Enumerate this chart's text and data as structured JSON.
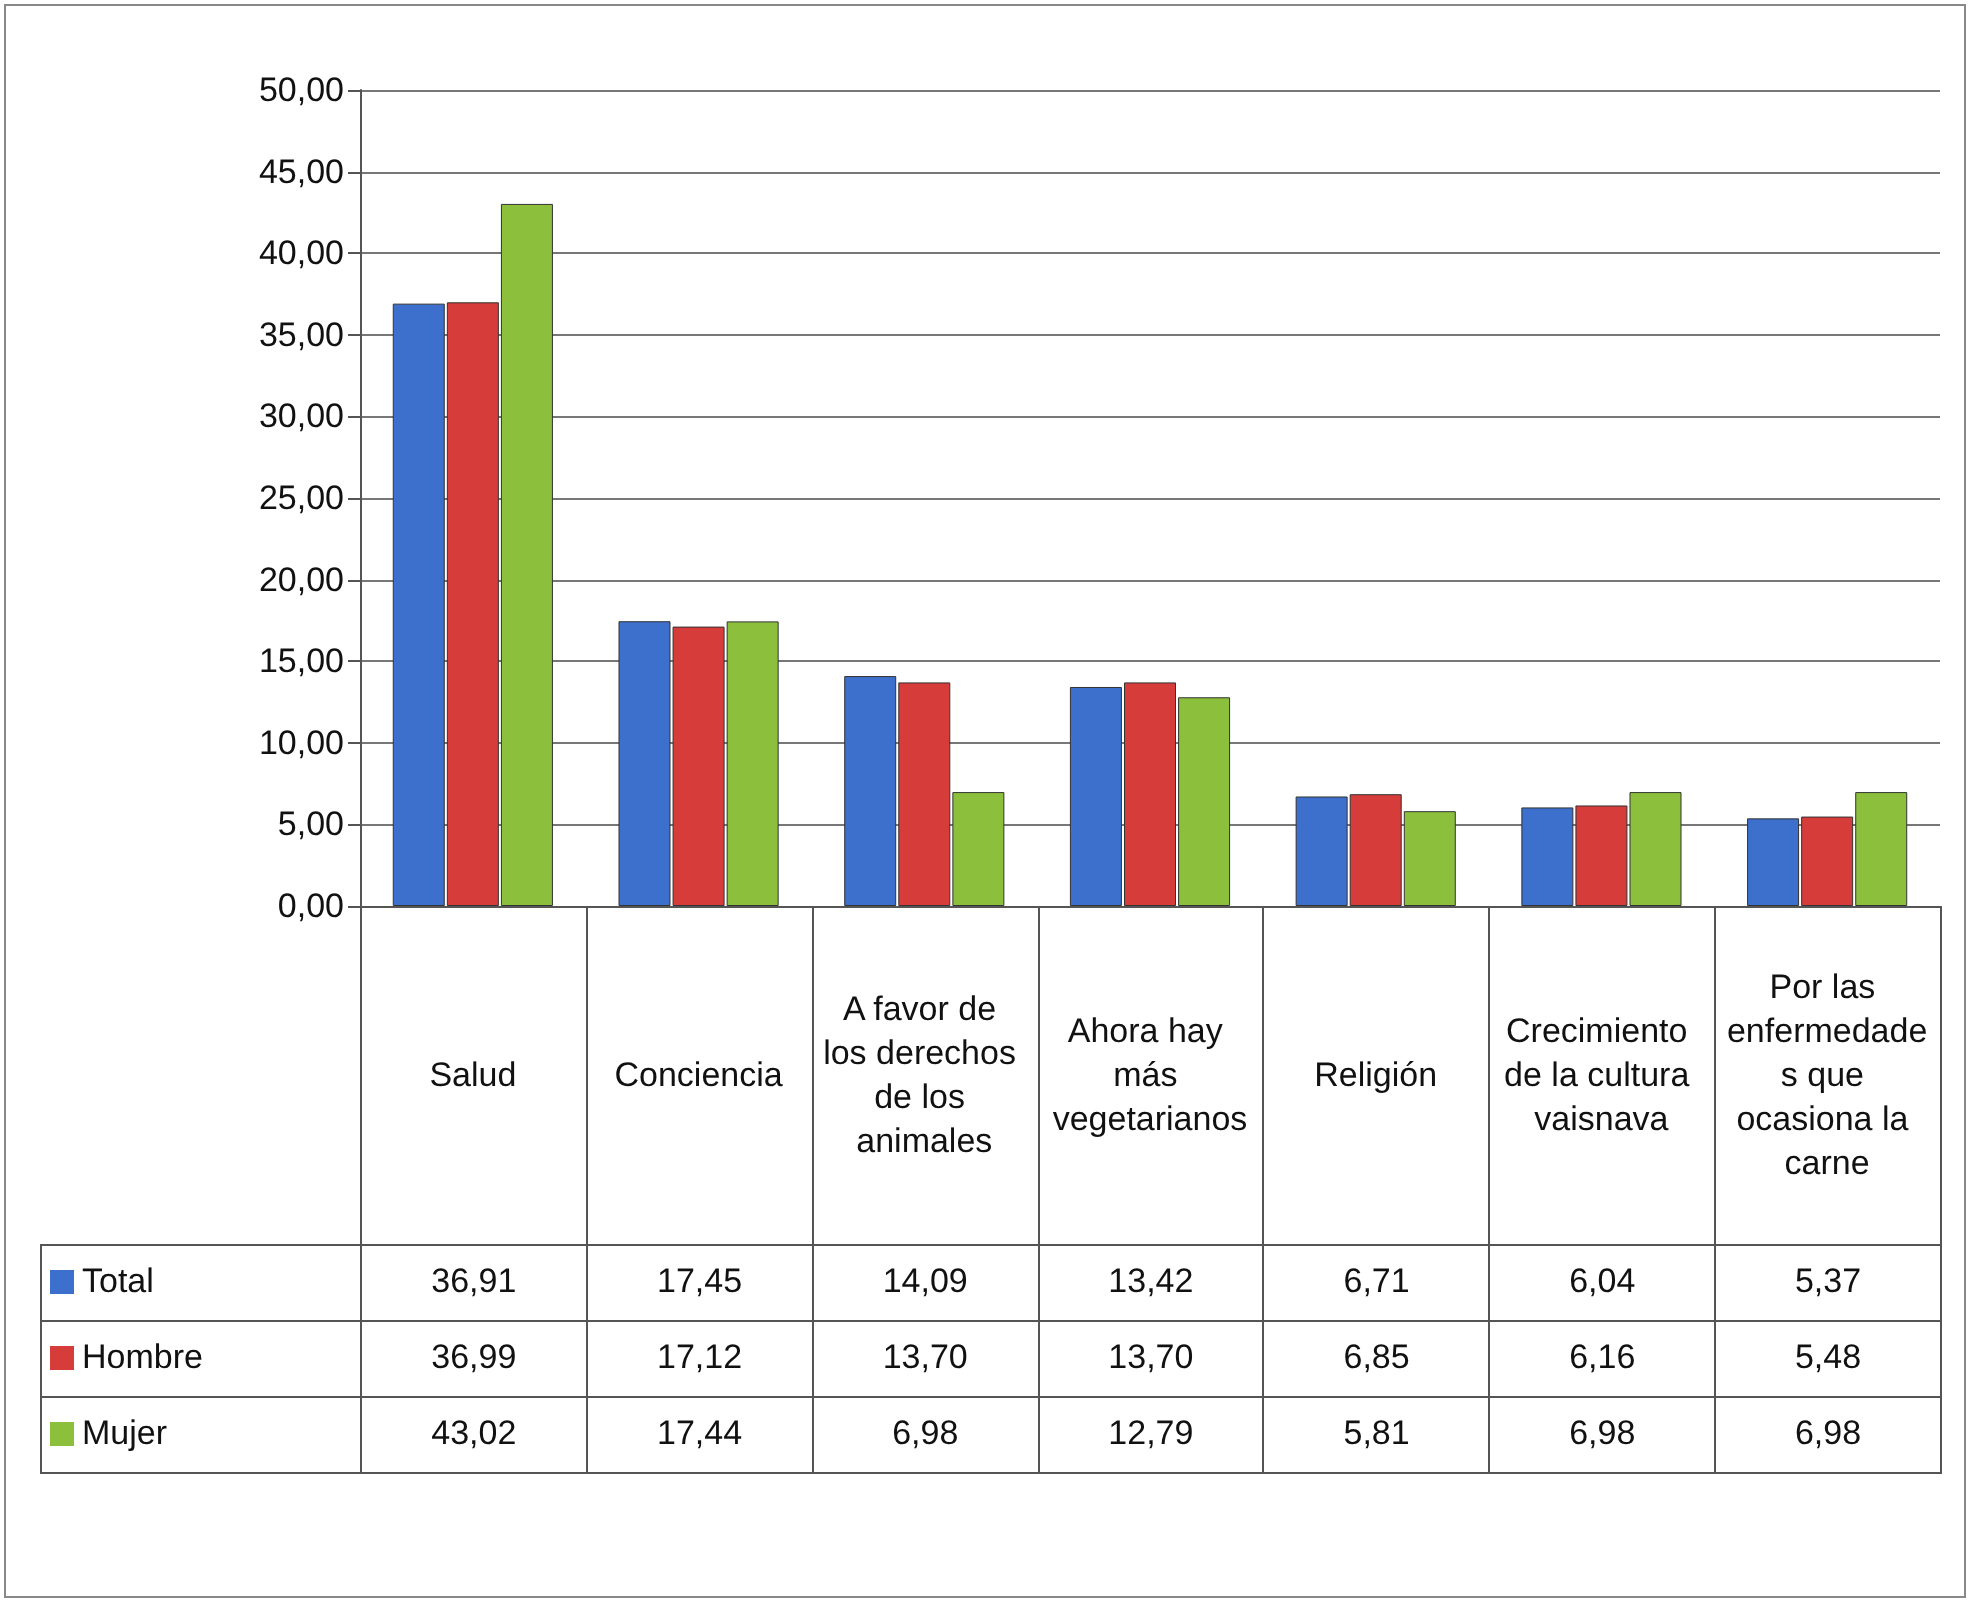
{
  "chart_data": {
    "type": "bar",
    "categories": [
      "Salud",
      "Conciencia",
      "A favor de los derechos de los animales",
      "Ahora hay más vegetarianos",
      "Religión",
      "Crecimiento de la cultura vaisnava",
      "Por las enfermedades que ocasiona la carne"
    ],
    "series": [
      {
        "name": "Total",
        "color": "#3d6fcc",
        "values": [
          36.91,
          17.45,
          14.09,
          13.42,
          6.71,
          6.04,
          5.37
        ],
        "value_labels": [
          "36,91",
          "17,45",
          "14,09",
          "13,42",
          "6,71",
          "6,04",
          "5,37"
        ]
      },
      {
        "name": "Hombre",
        "color": "#d63c3a",
        "values": [
          36.99,
          17.12,
          13.7,
          13.7,
          6.85,
          6.16,
          5.48
        ],
        "value_labels": [
          "36,99",
          "17,12",
          "13,70",
          "13,70",
          "6,85",
          "6,16",
          "5,48"
        ]
      },
      {
        "name": "Mujer",
        "color": "#8cbf3c",
        "values": [
          43.02,
          17.44,
          6.98,
          12.79,
          5.81,
          6.98,
          6.98
        ],
        "value_labels": [
          "43,02",
          "17,44",
          "6,98",
          "12,79",
          "5,81",
          "6,98",
          "6,98"
        ]
      }
    ],
    "ylim": [
      0,
      50
    ],
    "yticks": [
      {
        "value": 0,
        "label": "0,00"
      },
      {
        "value": 5,
        "label": "5,00"
      },
      {
        "value": 10,
        "label": "10,00"
      },
      {
        "value": 15,
        "label": "15,00"
      },
      {
        "value": 20,
        "label": "20,00"
      },
      {
        "value": 25,
        "label": "25,00"
      },
      {
        "value": 30,
        "label": "30,00"
      },
      {
        "value": 35,
        "label": "35,00"
      },
      {
        "value": 40,
        "label": "40,00"
      },
      {
        "value": 45,
        "label": "45,00"
      },
      {
        "value": 50,
        "label": "50,00"
      }
    ],
    "grid": "y",
    "legend": "bottom left"
  }
}
